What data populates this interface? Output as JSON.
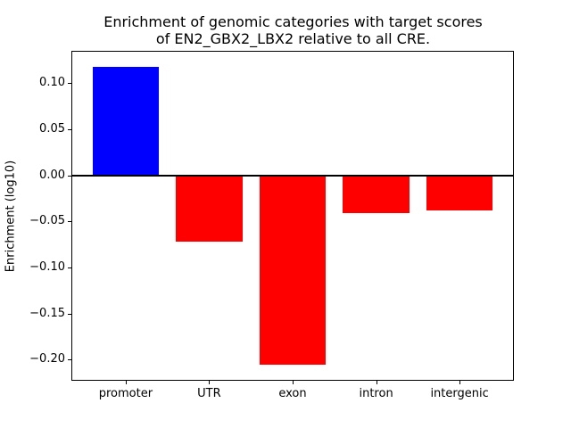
{
  "figure": {
    "background": "#ffffff"
  },
  "chart_data": {
    "type": "bar",
    "title": "Enrichment of genomic categories with target scores of EN2_GBX2_LBX2 relative to all CRE.",
    "title_lines": [
      "Enrichment of genomic categories with target scores",
      "of EN2_GBX2_LBX2 relative to all CRE."
    ],
    "xlabel": "",
    "ylabel": "Enrichment (log10)",
    "categories": [
      "promoter",
      "UTR",
      "exon",
      "intron",
      "intergenic"
    ],
    "values": [
      0.118,
      -0.072,
      -0.206,
      -0.041,
      -0.038
    ],
    "colors": [
      "#0000ff",
      "#ff0000",
      "#ff0000",
      "#ff0000",
      "#ff0000"
    ],
    "positive_color": "#0000ff",
    "negative_color": "#ff0000",
    "bar_width": 0.8,
    "ylim": [
      -0.2222,
      0.1342
    ],
    "xlim": [
      -0.64,
      4.64
    ],
    "yticks": [
      0.1,
      0.05,
      0.0,
      -0.05,
      -0.1,
      -0.15,
      -0.2
    ],
    "ytick_labels": [
      "0.10",
      "0.05",
      "0.00",
      "−0.05",
      "−0.10",
      "−0.15",
      "−0.20"
    ],
    "grid": false,
    "legend": null,
    "zero_line": true,
    "zero_line_color": "#000000",
    "axis_color": "#000000"
  }
}
